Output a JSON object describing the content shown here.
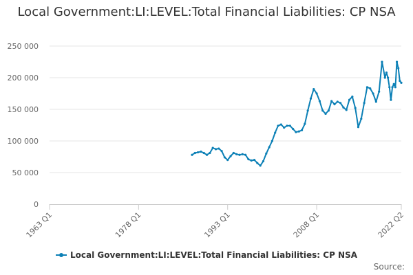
{
  "title": "Local Government:LI:LEVEL:Total Financial Liabilities: CP NSA",
  "source_label": "Source:",
  "colors": {
    "series": "#0c80b6",
    "grid": "#e6e6e6",
    "axis": "#cccccc",
    "text": "#333333",
    "tick_text": "#666666"
  },
  "chart_data": {
    "type": "line",
    "title": "Local Government:LI:LEVEL:Total Financial Liabilities: CP NSA",
    "xlabel": "",
    "ylabel": "",
    "ylim": [
      0,
      250000
    ],
    "xlim": [
      1963.0,
      2022.25
    ],
    "grid": "horizontal",
    "legend_position": "bottom-center",
    "yticks": [
      {
        "value": 0,
        "label": "0"
      },
      {
        "value": 50000,
        "label": "50 000"
      },
      {
        "value": 100000,
        "label": "100 000"
      },
      {
        "value": 150000,
        "label": "150 000"
      },
      {
        "value": 200000,
        "label": "200 000"
      },
      {
        "value": 250000,
        "label": "250 000"
      }
    ],
    "xticks": [
      {
        "value": 1963.0,
        "label": "1963 Q1"
      },
      {
        "value": 1978.0,
        "label": "1978 Q1"
      },
      {
        "value": 1993.0,
        "label": "1993 Q1"
      },
      {
        "value": 2008.0,
        "label": "2008 Q1"
      },
      {
        "value": 2022.25,
        "label": "2022 Q2"
      }
    ],
    "series": [
      {
        "name": "Local Government:LI:LEVEL:Total Financial Liabilities: CP NSA",
        "x": [
          1987.0,
          1987.5,
          1988.0,
          1988.5,
          1989.0,
          1989.5,
          1990.0,
          1990.5,
          1991.0,
          1991.5,
          1992.0,
          1992.5,
          1993.0,
          1993.5,
          1994.0,
          1994.5,
          1995.0,
          1995.5,
          1996.0,
          1996.5,
          1997.0,
          1997.5,
          1998.0,
          1998.5,
          1999.0,
          1999.5,
          2000.0,
          2000.5,
          2001.0,
          2001.5,
          2002.0,
          2002.5,
          2003.0,
          2003.5,
          2004.0,
          2004.5,
          2005.0,
          2005.5,
          2006.0,
          2006.5,
          2007.0,
          2007.5,
          2008.0,
          2008.5,
          2009.0,
          2009.5,
          2010.0,
          2010.5,
          2011.0,
          2011.5,
          2012.0,
          2012.5,
          2013.0,
          2013.5,
          2014.0,
          2014.5,
          2015.0,
          2015.5,
          2016.0,
          2016.5,
          2017.0,
          2017.5,
          2018.0,
          2018.5,
          2019.0,
          2019.5,
          2019.75,
          2020.0,
          2020.25,
          2020.5,
          2020.75,
          2021.0,
          2021.25,
          2021.5,
          2021.75,
          2022.0,
          2022.25
        ],
        "values": [
          78000,
          81000,
          82000,
          83000,
          81000,
          78000,
          81000,
          89000,
          87000,
          88000,
          84000,
          74000,
          70000,
          76000,
          81000,
          79000,
          78000,
          79000,
          78000,
          71000,
          69000,
          70000,
          65000,
          61000,
          68000,
          80000,
          90000,
          100000,
          113000,
          124000,
          126000,
          121000,
          124000,
          124000,
          119000,
          114000,
          115000,
          117000,
          127000,
          148000,
          167000,
          182000,
          175000,
          163000,
          148000,
          143000,
          148000,
          163000,
          158000,
          162000,
          160000,
          153000,
          149000,
          165000,
          170000,
          152000,
          122000,
          135000,
          160000,
          185000,
          183000,
          175000,
          162000,
          178000,
          225000,
          200000,
          208000,
          200000,
          185000,
          165000,
          185000,
          190000,
          185000,
          225000,
          215000,
          195000,
          192000
        ]
      }
    ]
  }
}
